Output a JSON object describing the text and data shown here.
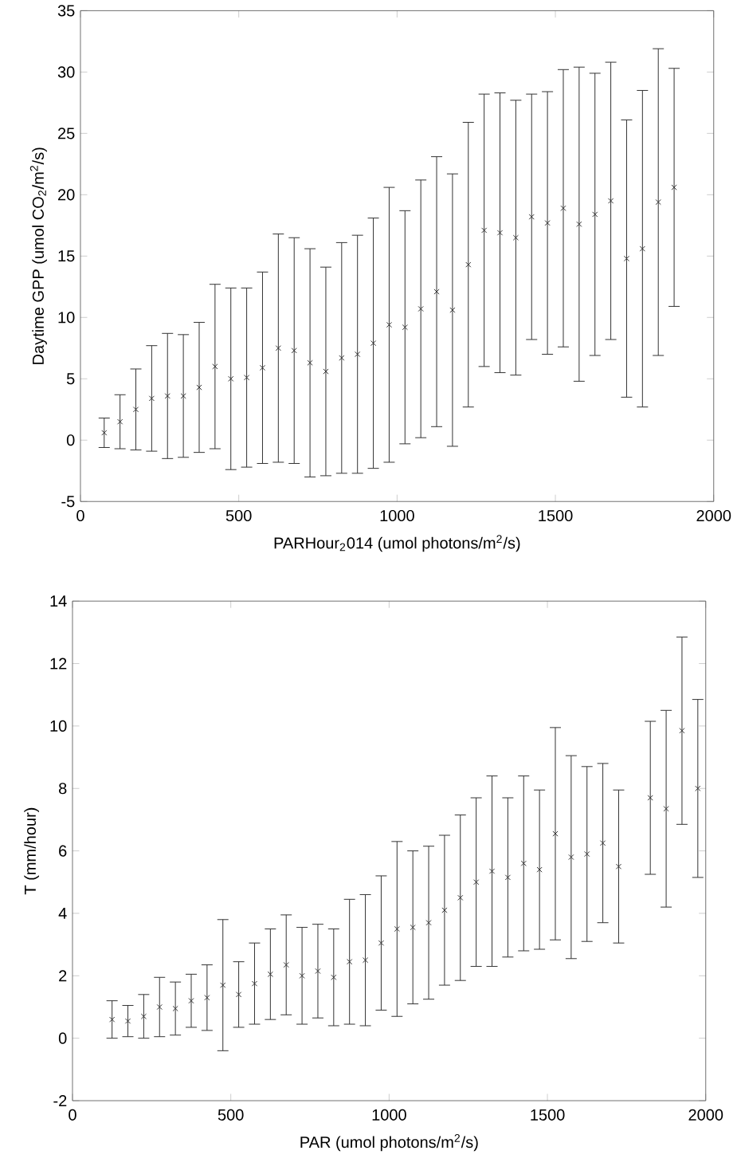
{
  "chart_data": [
    {
      "type": "scatter",
      "xlabel": "PARHour$_{2}$014 (umol photons/m$^{2}$/s)",
      "ylabel": "Daytime GPP (umol CO$_{2}$/m$^{2}$/s)",
      "marker": "cross",
      "color": "#333333",
      "x": [
        75,
        125,
        175,
        225,
        275,
        325,
        375,
        425,
        475,
        525,
        575,
        625,
        675,
        725,
        775,
        825,
        875,
        925,
        975,
        1025,
        1075,
        1125,
        1175,
        1225,
        1275,
        1325,
        1375,
        1425,
        1475,
        1525,
        1575,
        1625,
        1675,
        1725,
        1775,
        1825,
        1875
      ],
      "values": [
        0.6,
        1.5,
        2.5,
        3.4,
        3.6,
        3.6,
        4.3,
        6.0,
        5.0,
        5.1,
        5.9,
        7.5,
        7.3,
        6.3,
        5.6,
        6.7,
        7.0,
        7.9,
        9.4,
        9.2,
        10.7,
        12.1,
        10.6,
        14.3,
        17.1,
        16.9,
        16.5,
        18.2,
        17.7,
        18.9,
        17.6,
        18.4,
        19.5,
        14.8,
        15.6,
        19.4,
        20.6
      ],
      "errors": [
        1.2,
        2.2,
        3.3,
        4.3,
        5.1,
        5.0,
        5.3,
        6.7,
        7.4,
        7.3,
        7.8,
        9.3,
        9.2,
        9.3,
        8.5,
        9.4,
        9.7,
        10.2,
        11.2,
        9.5,
        10.5,
        11.0,
        11.1,
        11.6,
        11.1,
        11.4,
        11.2,
        10.0,
        10.7,
        11.3,
        12.8,
        11.5,
        11.3,
        11.3,
        12.9,
        12.5,
        9.7
      ],
      "xlim": [
        0,
        2000
      ],
      "xticks": [
        0,
        500,
        1000,
        1500,
        2000
      ],
      "ylim": [
        -5,
        35
      ],
      "yticks": [
        -5,
        0,
        5,
        10,
        15,
        20,
        25,
        30,
        35
      ],
      "grid": false
    },
    {
      "type": "scatter",
      "xlabel": "PAR (umol photons/m$^{2}$/s)",
      "ylabel": "T (mm/hour)",
      "marker": "cross",
      "color": "#333333",
      "x": [
        125,
        175,
        225,
        275,
        325,
        375,
        425,
        475,
        525,
        575,
        625,
        675,
        725,
        775,
        825,
        875,
        925,
        975,
        1025,
        1075,
        1125,
        1175,
        1225,
        1275,
        1325,
        1375,
        1425,
        1475,
        1525,
        1575,
        1625,
        1675,
        1725,
        1825,
        1875,
        1925,
        1975
      ],
      "values": [
        0.6,
        0.55,
        0.7,
        1.0,
        0.95,
        1.2,
        1.3,
        1.7,
        1.4,
        1.75,
        2.05,
        2.35,
        2.0,
        2.15,
        1.95,
        2.45,
        2.5,
        3.05,
        3.5,
        3.55,
        3.7,
        4.1,
        4.5,
        5.0,
        5.35,
        5.15,
        5.6,
        5.4,
        6.55,
        5.8,
        5.9,
        6.25,
        5.5,
        7.7,
        7.35,
        9.85,
        8.0
      ],
      "errors": [
        0.6,
        0.5,
        0.7,
        0.95,
        0.85,
        0.85,
        1.05,
        2.1,
        1.05,
        1.3,
        1.45,
        1.6,
        1.55,
        1.5,
        1.55,
        2.0,
        2.1,
        2.15,
        2.8,
        2.45,
        2.45,
        2.4,
        2.65,
        2.7,
        3.05,
        2.55,
        2.8,
        2.55,
        3.4,
        3.25,
        2.8,
        2.55,
        2.45,
        2.45,
        3.15,
        3.0,
        2.85
      ],
      "xlim": [
        0,
        2000
      ],
      "xticks": [
        0,
        500,
        1000,
        1500,
        2000
      ],
      "ylim": [
        -2,
        14
      ],
      "yticks": [
        -2,
        0,
        2,
        4,
        6,
        8,
        10,
        12,
        14
      ],
      "grid": false
    }
  ]
}
